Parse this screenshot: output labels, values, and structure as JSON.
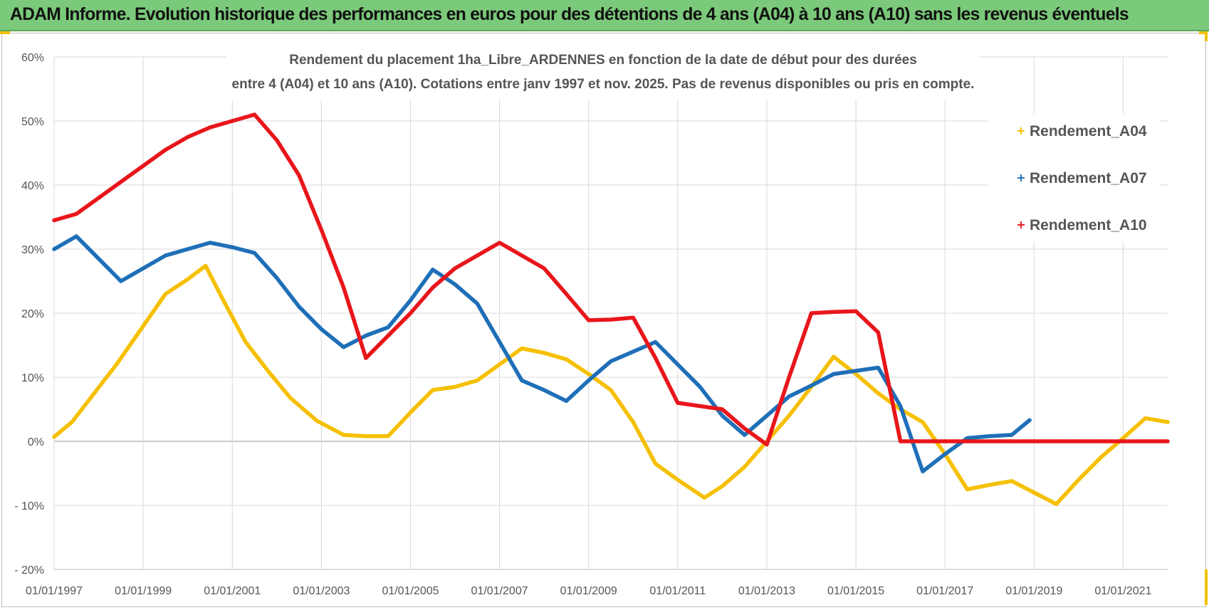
{
  "header": {
    "title": "ADAM Informe. Evolution historique des performances en euros pour des détentions de 4 ans (A04) à 10 ans (A10) sans les revenus éventuels"
  },
  "chart_data": {
    "type": "line",
    "title_lines": [
      "Rendement du placement 1ha_Libre_ARDENNES en fonction de la date de début pour des durées",
      "entre 4 (A04) et 10 ans (A10).  Cotations entre janv 1997 et nov. 2025. Pas de revenus disponibles ou pris en compte."
    ],
    "xlabel": "",
    "ylabel": "",
    "x_range": [
      1997.0,
      2022.0
    ],
    "ylim": [
      -20,
      60
    ],
    "y_ticks": [
      60,
      50,
      40,
      30,
      20,
      10,
      0,
      -10,
      -20
    ],
    "y_tick_labels": [
      "60%",
      "50%",
      "40%",
      "30%",
      "20%",
      "10%",
      "0%",
      "- 10%",
      "- 20%"
    ],
    "x_ticks": [
      1997,
      1999,
      2001,
      2003,
      2005,
      2007,
      2009,
      2011,
      2013,
      2015,
      2017,
      2019,
      2021
    ],
    "x_tick_labels": [
      "01/01/1997",
      "01/01/1999",
      "01/01/2001",
      "01/01/2003",
      "01/01/2005",
      "01/01/2007",
      "01/01/2009",
      "01/01/2011",
      "01/01/2013",
      "01/01/2015",
      "01/01/2017",
      "01/01/2019",
      "01/01/2021"
    ],
    "grid": true,
    "legend_position": "top-right",
    "series": [
      {
        "name": "Rendement_A04",
        "color": "#f5c000",
        "x": [
          1997.0,
          1997.4,
          1997.9,
          1998.4,
          1998.9,
          1999.5,
          2000.0,
          2000.4,
          2000.8,
          2001.3,
          2001.8,
          2002.3,
          2002.9,
          2003.5,
          2004.0,
          2004.5,
          2005.0,
          2005.5,
          2006.0,
          2006.5,
          2007.0,
          2007.5,
          2008.0,
          2008.5,
          2009.0,
          2009.5,
          2010.0,
          2010.5,
          2011.0,
          2011.6,
          2012.0,
          2012.5,
          2013.0,
          2013.5,
          2014.0,
          2014.5,
          2015.0,
          2015.5,
          2016.0,
          2016.5,
          2017.0,
          2017.5,
          2018.0,
          2018.5,
          2019.0,
          2019.5,
          2020.0,
          2020.5,
          2021.0,
          2021.5,
          2022.0
        ],
        "values": [
          0.7,
          3.0,
          7.5,
          12.0,
          17.0,
          23.0,
          25.3,
          27.4,
          22.0,
          15.5,
          11.0,
          6.8,
          3.2,
          1.0,
          0.8,
          0.8,
          4.5,
          8.0,
          8.5,
          9.5,
          12.0,
          14.5,
          13.8,
          12.8,
          10.5,
          8.0,
          3.0,
          -3.5,
          -6.0,
          -8.8,
          -7.0,
          -4.0,
          0.0,
          4.0,
          8.5,
          13.2,
          10.5,
          7.5,
          5.0,
          3.0,
          -2.0,
          -7.5,
          -6.8,
          -6.2,
          -8.0,
          -9.8,
          -6.0,
          -2.5,
          0.5,
          3.6,
          3.0
        ]
      },
      {
        "name": "Rendement_A07",
        "color": "#1f6fb8",
        "x": [
          1997.0,
          1997.5,
          1998.0,
          1998.5,
          1999.0,
          1999.5,
          2000.0,
          2000.5,
          2001.0,
          2001.5,
          2002.0,
          2002.5,
          2003.0,
          2003.5,
          2004.0,
          2004.5,
          2005.0,
          2005.5,
          2006.0,
          2006.5,
          2007.0,
          2007.5,
          2008.0,
          2008.5,
          2009.0,
          2009.5,
          2010.0,
          2010.5,
          2011.0,
          2011.5,
          2012.0,
          2012.5,
          2013.0,
          2013.5,
          2014.0,
          2014.5,
          2015.0,
          2015.5,
          2016.0,
          2016.5,
          2017.0,
          2017.5,
          2018.0,
          2018.5,
          2018.9
        ],
        "values": [
          30.0,
          32.0,
          28.5,
          25.0,
          27.0,
          29.0,
          30.0,
          31.0,
          30.3,
          29.4,
          25.5,
          21.0,
          17.5,
          14.7,
          16.5,
          17.8,
          22.0,
          26.8,
          24.5,
          21.5,
          15.5,
          9.5,
          8.0,
          6.3,
          9.5,
          12.5,
          14.0,
          15.5,
          12.0,
          8.5,
          4.0,
          1.0,
          4.0,
          7.0,
          8.7,
          10.5,
          11.0,
          11.5,
          5.5,
          -4.7,
          -2.0,
          0.5,
          0.8,
          1.0,
          3.3
        ]
      },
      {
        "name": "Rendement_A10",
        "color": "#e8161b",
        "x": [
          1997.0,
          1997.5,
          1998.0,
          1998.5,
          1999.0,
          1999.5,
          2000.0,
          2000.5,
          2001.0,
          2001.5,
          2002.0,
          2002.5,
          2003.0,
          2003.5,
          2004.0,
          2004.5,
          2005.0,
          2005.5,
          2006.0,
          2006.5,
          2007.0,
          2007.5,
          2008.0,
          2008.5,
          2009.0,
          2009.5,
          2010.0,
          2010.5,
          2011.0,
          2011.5,
          2012.0,
          2012.5,
          2013.0,
          2013.5,
          2014.0,
          2014.5,
          2015.0,
          2015.5,
          2016.0,
          2016.5,
          2017.0,
          2017.5,
          2018.0,
          2018.5,
          2019.0,
          2019.5,
          2020.0,
          2020.5,
          2021.0,
          2021.5,
          2022.0
        ],
        "values": [
          34.5,
          35.5,
          38.0,
          40.5,
          43.0,
          45.5,
          47.5,
          49.0,
          50.0,
          51.0,
          47.0,
          41.5,
          33.0,
          24.0,
          13.0,
          16.5,
          20.0,
          24.0,
          27.0,
          29.0,
          31.0,
          29.0,
          27.0,
          23.0,
          18.9,
          19.0,
          19.3,
          13.0,
          6.0,
          5.5,
          5.0,
          2.0,
          -0.5,
          10.0,
          20.0,
          20.2,
          20.3,
          17.0,
          0.0,
          0.0,
          0.0,
          0.0,
          0.0,
          0.0,
          0.0,
          0.0,
          0.0,
          0.0,
          0.0,
          0.0,
          0.0
        ]
      }
    ]
  }
}
